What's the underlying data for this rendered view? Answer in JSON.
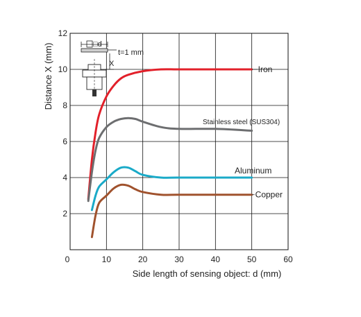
{
  "chart_data": {
    "type": "line",
    "xlabel": "Side length of sensing object: d (mm)",
    "ylabel": "Distance X (mm)",
    "xlim": [
      0,
      60
    ],
    "ylim": [
      0,
      12
    ],
    "x_ticks": [
      "0",
      "10",
      "20",
      "30",
      "40",
      "50",
      "60"
    ],
    "y_ticks": [
      "2",
      "4",
      "6",
      "8",
      "10",
      "12"
    ],
    "grid": true,
    "series": [
      {
        "name": "Iron",
        "color": "#e2202a",
        "points": [
          [
            5,
            2.8
          ],
          [
            6,
            5.0
          ],
          [
            7,
            6.5
          ],
          [
            8,
            7.5
          ],
          [
            10,
            8.5
          ],
          [
            12,
            9.1
          ],
          [
            14,
            9.5
          ],
          [
            16,
            9.7
          ],
          [
            20,
            9.9
          ],
          [
            25,
            10.0
          ],
          [
            30,
            10.0
          ],
          [
            40,
            10.0
          ],
          [
            50,
            10.0
          ]
        ]
      },
      {
        "name": "Stainless steel (SUS304)",
        "color": "#6d6e70",
        "points": [
          [
            5,
            2.7
          ],
          [
            6,
            4.3
          ],
          [
            7,
            5.5
          ],
          [
            8,
            6.2
          ],
          [
            10,
            6.8
          ],
          [
            12,
            7.1
          ],
          [
            14,
            7.25
          ],
          [
            16,
            7.3
          ],
          [
            18,
            7.25
          ],
          [
            20,
            7.1
          ],
          [
            25,
            6.8
          ],
          [
            30,
            6.7
          ],
          [
            40,
            6.7
          ],
          [
            50,
            6.6
          ]
        ]
      },
      {
        "name": "Aluminum",
        "color": "#1aaac8",
        "points": [
          [
            6,
            2.2
          ],
          [
            7,
            3.0
          ],
          [
            8,
            3.5
          ],
          [
            10,
            3.9
          ],
          [
            12,
            4.3
          ],
          [
            14,
            4.55
          ],
          [
            16,
            4.55
          ],
          [
            18,
            4.35
          ],
          [
            20,
            4.15
          ],
          [
            25,
            4.0
          ],
          [
            30,
            4.0
          ],
          [
            40,
            4.0
          ],
          [
            50,
            4.0
          ]
        ]
      },
      {
        "name": "Copper",
        "color": "#a0522d",
        "points": [
          [
            6,
            0.7
          ],
          [
            7,
            1.9
          ],
          [
            8,
            2.6
          ],
          [
            10,
            3.0
          ],
          [
            12,
            3.4
          ],
          [
            14,
            3.6
          ],
          [
            16,
            3.55
          ],
          [
            18,
            3.35
          ],
          [
            20,
            3.2
          ],
          [
            25,
            3.05
          ],
          [
            30,
            3.05
          ],
          [
            40,
            3.05
          ],
          [
            50,
            3.05
          ]
        ]
      }
    ],
    "annotations": {
      "diagram_square_label": "□d",
      "diagram_thickness_label": "t=1 mm",
      "diagram_distance_label": "X"
    }
  }
}
